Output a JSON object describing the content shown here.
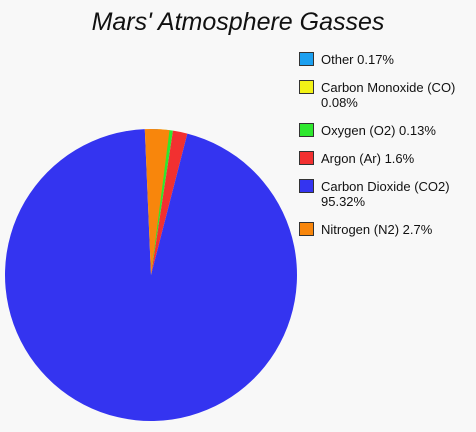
{
  "chart_data": {
    "type": "pie",
    "title": "Mars' Atmosphere Gasses",
    "legend_position": "right",
    "slices": [
      {
        "label": "Other",
        "value": 0.17,
        "legend": "Other 0.17%",
        "color": "#1ca0f0"
      },
      {
        "label": "Carbon Monoxide (CO)",
        "value": 0.08,
        "legend": "Carbon Monoxide (CO) 0.08%",
        "color": "#f3f316"
      },
      {
        "label": "Oxygen (O2)",
        "value": 0.13,
        "legend": "Oxygen (O2) 0.13%",
        "color": "#2ee82e"
      },
      {
        "label": "Argon (Ar)",
        "value": 1.6,
        "legend": "Argon (Ar) 1.6%",
        "color": "#f23030"
      },
      {
        "label": "Carbon Dioxide (CO2)",
        "value": 95.32,
        "legend": "Carbon Dioxide (CO2) 95.32%",
        "color": "#3434f0"
      },
      {
        "label": "Nitrogen (N2)",
        "value": 2.7,
        "legend": "Nitrogen (N2) 2.7%",
        "color": "#f8860c"
      }
    ]
  }
}
